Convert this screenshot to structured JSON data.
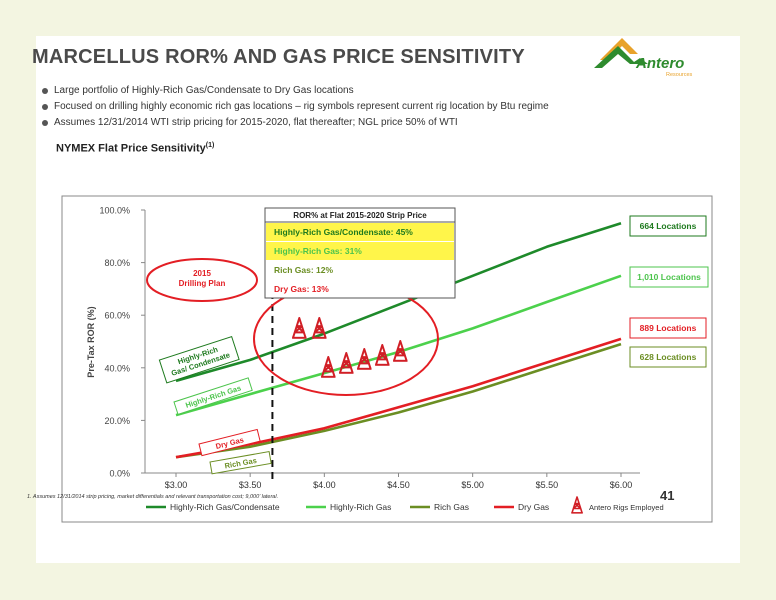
{
  "page": {
    "title": "MARCELLUS ROR% AND GAS PRICE SENSITIVITY",
    "logo_text": "Antero",
    "logo_subtext": "Resources",
    "bullets": [
      "Large portfolio of Highly-Rich Gas/Condensate to Dry Gas locations",
      "Focused on drilling highly economic rich gas locations – rig symbols represent current rig location by Btu regime",
      "Assumes 12/31/2014 WTI strip pricing for 2015-2020, flat thereafter; NGL price 50% of WTI"
    ],
    "chart_heading": "NYMEX Flat Price Sensitivity",
    "chart_heading_sup": "(1)",
    "footnote": "1.  Assumes 12/31/2014 strip pricing, market differentials and relevant transportation cost; 9,000’ lateral.",
    "page_number": "41",
    "colors": {
      "brand_green": "#1a7a1a",
      "logo_orange": "#e8a22a",
      "logo_green": "#2e8b2e"
    }
  },
  "chart_data": {
    "type": "line",
    "ylabel": "Pre-Tax ROR (%)",
    "xlabel": "",
    "x": [
      3.0,
      3.5,
      4.0,
      4.5,
      5.0,
      5.5,
      6.0
    ],
    "xtick_labels": [
      "$3.00",
      "$3.50",
      "$4.00",
      "$4.50",
      "$5.00",
      "$5.50",
      "$6.00"
    ],
    "ylim": [
      0,
      100
    ],
    "yticks": [
      0,
      20,
      40,
      60,
      80,
      100
    ],
    "ytick_labels": [
      "0.0%",
      "20.0%",
      "40.0%",
      "60.0%",
      "80.0%",
      "100.0%"
    ],
    "grid": false,
    "legend_position": "bottom",
    "series": [
      {
        "name": "Highly-Rich Gas/Condensate",
        "color": "#1e8a2a",
        "values": [
          35,
          43,
          53,
          64,
          75,
          86,
          95
        ]
      },
      {
        "name": "Highly-Rich Gas",
        "color": "#4cd14c",
        "values": [
          22,
          30,
          38,
          46,
          55,
          65,
          75
        ]
      },
      {
        "name": "Rich Gas",
        "color": "#6b8e23",
        "values": [
          6,
          10,
          16,
          23,
          31,
          40,
          49
        ]
      },
      {
        "name": "Dry Gas",
        "color": "#e31e24",
        "values": [
          6,
          11,
          17,
          25,
          33,
          42,
          51
        ]
      }
    ],
    "legend_extra": "Antero Rigs Employed",
    "end_labels": [
      {
        "text": "664 Locations",
        "color": "#1e7a1e"
      },
      {
        "text": "1,010 Locations",
        "color": "#4cc44c"
      },
      {
        "text": "889 Locations",
        "color": "#e31e24"
      },
      {
        "text": "628 Locations",
        "color": "#6b8e23"
      }
    ],
    "series_labels": [
      {
        "text": "Highly-Rich Gas/ Condensate",
        "color": "#1e7a1e"
      },
      {
        "text": "Highly-Rich Gas",
        "color": "#4cc44c"
      },
      {
        "text": "Dry Gas",
        "color": "#e31e24"
      },
      {
        "text": "Rich Gas",
        "color": "#6b8e23"
      }
    ],
    "drilling_plan": {
      "text_line1": "2015",
      "text_line2": "Drilling Plan",
      "x": 3.65
    },
    "ror_box": {
      "title": "ROR% at Flat 2015-2020 Strip Price",
      "rows": [
        {
          "text": "Highly-Rich Gas/Condensate: 45%",
          "color": "#1e7a1e",
          "highlight": true
        },
        {
          "text": "Highly-Rich Gas: 31%",
          "color": "#4cc44c",
          "highlight": true
        },
        {
          "text": "Rich Gas: 12%",
          "color": "#6b8e23",
          "highlight": false
        },
        {
          "text": "Dry Gas: 13%",
          "color": "#e31e24",
          "highlight": false
        }
      ]
    },
    "rigs": {
      "highly_rich_gas_condensate": 2,
      "highly_rich_gas": 5
    }
  }
}
